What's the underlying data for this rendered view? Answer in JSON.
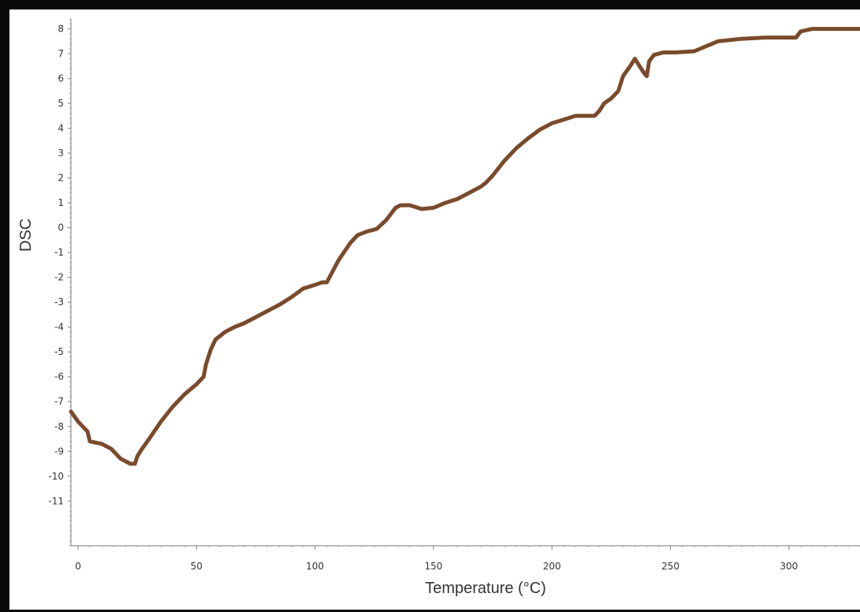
{
  "chart_data": {
    "type": "line",
    "xlabel": "Temperature (°C)",
    "ylabel": "DSC",
    "xlim": [
      -3,
      330
    ],
    "ylim": [
      -12.8,
      8.4
    ],
    "x_ticks": [
      0,
      50,
      100,
      150,
      200,
      250,
      300
    ],
    "y_ticks": [
      8,
      7,
      6,
      5,
      4,
      3,
      2,
      1,
      0,
      -1,
      -2,
      -3,
      -4,
      -5,
      -6,
      -7,
      -8,
      -9,
      -10,
      -11
    ],
    "grid": false,
    "line_color": "#7a4a2c",
    "series": [
      {
        "x": [
          -3,
          0,
          2,
          4,
          5,
          10,
          14,
          18,
          22,
          24,
          25,
          27,
          30,
          35,
          40,
          45,
          50,
          53,
          54,
          56,
          58,
          62,
          66,
          70,
          75,
          80,
          85,
          90,
          95,
          100,
          103,
          105,
          110,
          115,
          118,
          122,
          126,
          130,
          134,
          136,
          140,
          145,
          150,
          155,
          160,
          165,
          170,
          172,
          175,
          180,
          185,
          190,
          195,
          200,
          205,
          210,
          213,
          215,
          218,
          220,
          222,
          225,
          228,
          230,
          233,
          235,
          237,
          239,
          240,
          241,
          243,
          247,
          252,
          260,
          270,
          280,
          290,
          303,
          305,
          310,
          320,
          330
        ],
        "y": [
          -7.4,
          -7.8,
          -8.0,
          -8.2,
          -8.6,
          -8.7,
          -8.9,
          -9.3,
          -9.5,
          -9.5,
          -9.2,
          -8.9,
          -8.5,
          -7.8,
          -7.2,
          -6.7,
          -6.3,
          -6.0,
          -5.5,
          -4.9,
          -4.5,
          -4.2,
          -4.0,
          -3.85,
          -3.6,
          -3.35,
          -3.1,
          -2.8,
          -2.45,
          -2.3,
          -2.2,
          -2.2,
          -1.3,
          -0.6,
          -0.3,
          -0.15,
          -0.05,
          0.3,
          0.8,
          0.9,
          0.9,
          0.75,
          0.8,
          1.0,
          1.15,
          1.4,
          1.65,
          1.8,
          2.1,
          2.7,
          3.2,
          3.6,
          3.95,
          4.2,
          4.35,
          4.5,
          4.5,
          4.5,
          4.5,
          4.7,
          5.0,
          5.2,
          5.5,
          6.1,
          6.5,
          6.8,
          6.5,
          6.2,
          6.1,
          6.7,
          6.95,
          7.05,
          7.05,
          7.1,
          7.5,
          7.6,
          7.65,
          7.65,
          7.9,
          8.0,
          8.0,
          8.0
        ]
      }
    ]
  }
}
